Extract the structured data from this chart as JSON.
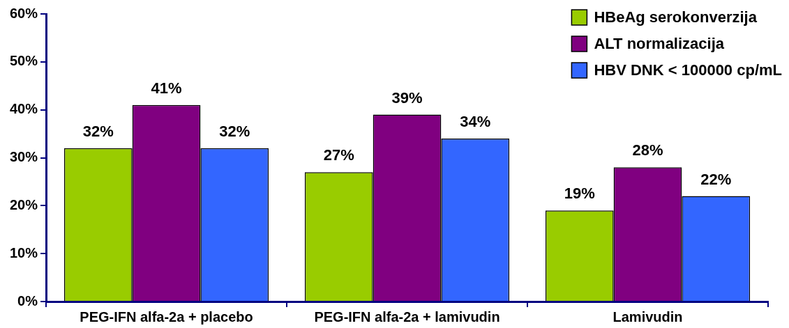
{
  "chart_data": {
    "type": "bar",
    "categories": [
      "PEG-IFN alfa-2a + placebo",
      "PEG-IFN alfa-2a + lamivudin",
      "Lamivudin"
    ],
    "series": [
      {
        "name": "HBeAg serokonverzija",
        "color": "#99cc00",
        "values": [
          32,
          27,
          19
        ],
        "value_labels": [
          "32%",
          "27%",
          "19%"
        ]
      },
      {
        "name": "ALT normalizacija",
        "color": "#800080",
        "values": [
          41,
          39,
          28
        ],
        "value_labels": [
          "41%",
          "39%",
          "28%"
        ]
      },
      {
        "name": "HBV DNK < 100000 cp/mL",
        "color": "#3366ff",
        "values": [
          32,
          34,
          22
        ],
        "value_labels": [
          "32%",
          "34%",
          "22%"
        ]
      }
    ],
    "ylim": [
      0,
      60
    ],
    "yticks": [
      {
        "value": 0,
        "label": "0%"
      },
      {
        "value": 10,
        "label": "10%"
      },
      {
        "value": 20,
        "label": "20%"
      },
      {
        "value": 30,
        "label": "30%"
      },
      {
        "value": 40,
        "label": "40%"
      },
      {
        "value": 50,
        "label": "50%"
      },
      {
        "value": 60,
        "label": "60%"
      }
    ],
    "grid": false,
    "legend": "top right"
  }
}
